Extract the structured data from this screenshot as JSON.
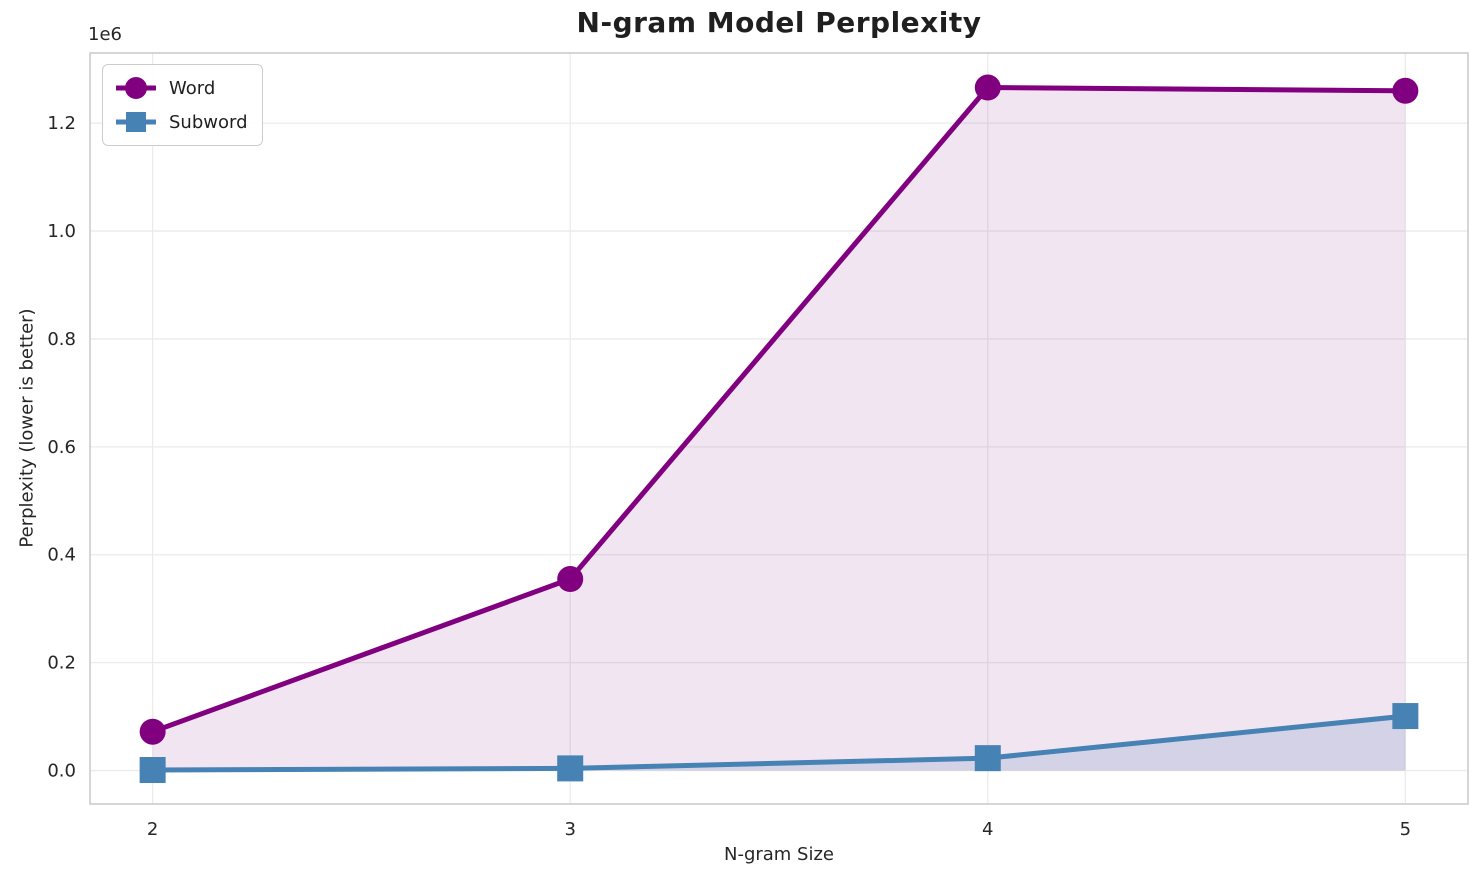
{
  "chart_data": {
    "type": "line",
    "title": "N-gram Model Perplexity",
    "xlabel": "N-gram Size",
    "ylabel": "Perplexity (lower is better)",
    "y_offset_label": "1e6",
    "x": [
      2,
      3,
      4,
      5
    ],
    "series": [
      {
        "name": "Word",
        "marker": "circle",
        "color": "#800080",
        "fill_alpha": 0.1,
        "values": [
          72000,
          355000,
          1266000,
          1260000
        ]
      },
      {
        "name": "Subword",
        "marker": "square",
        "color": "#4682B4",
        "fill_alpha": 0.18,
        "values": [
          1000,
          4000,
          23000,
          101000
        ]
      }
    ],
    "xlim": [
      1.85,
      5.15
    ],
    "ylim": [
      -62000,
      1330000
    ],
    "xticks": [
      2,
      3,
      4,
      5
    ],
    "xtick_labels": [
      "2",
      "3",
      "4",
      "5"
    ],
    "yticks": [
      0,
      200000,
      400000,
      600000,
      800000,
      1000000,
      1200000
    ],
    "ytick_labels": [
      "0.0",
      "0.2",
      "0.4",
      "0.6",
      "0.8",
      "1.0",
      "1.2"
    ],
    "grid": true,
    "legend_position": "upper left",
    "colors": {
      "background": "#ffffff",
      "grid": "#ebebeb",
      "spine": "#cccccc",
      "text": "#262626",
      "title": "#1f1f1f"
    }
  }
}
